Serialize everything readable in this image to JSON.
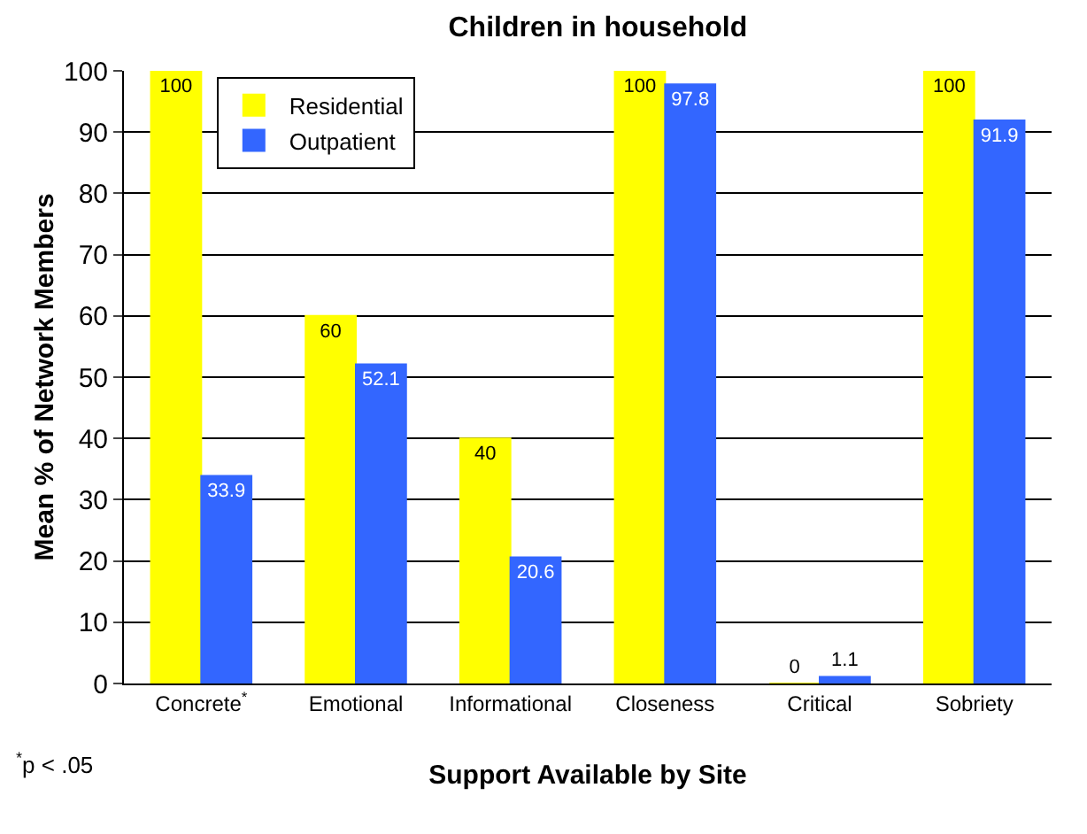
{
  "chart_data": {
    "type": "bar",
    "title": "Children in household",
    "xlabel": "Support Available by Site",
    "ylabel": "Mean % of Network Members",
    "categories": [
      "Concrete$^{*}$",
      "Emotional",
      "Informational",
      "Closeness",
      "Critical",
      "Sobriety"
    ],
    "series": [
      {
        "name": "Residential",
        "color": "#ffff00",
        "values": [
          100,
          60,
          40,
          100,
          0,
          100
        ]
      },
      {
        "name": "Outpatient",
        "color": "#3366ff",
        "values": [
          33.9,
          52.1,
          20.6,
          97.8,
          1.1,
          91.9
        ]
      }
    ],
    "ylim": [
      0,
      100
    ],
    "yticks": [
      0,
      10,
      20,
      30,
      40,
      50,
      60,
      70,
      80,
      90,
      100
    ],
    "grid": "y",
    "legend": "top left",
    "data_labels": true,
    "annotations": [
      "$^{*}$p < .05"
    ]
  }
}
